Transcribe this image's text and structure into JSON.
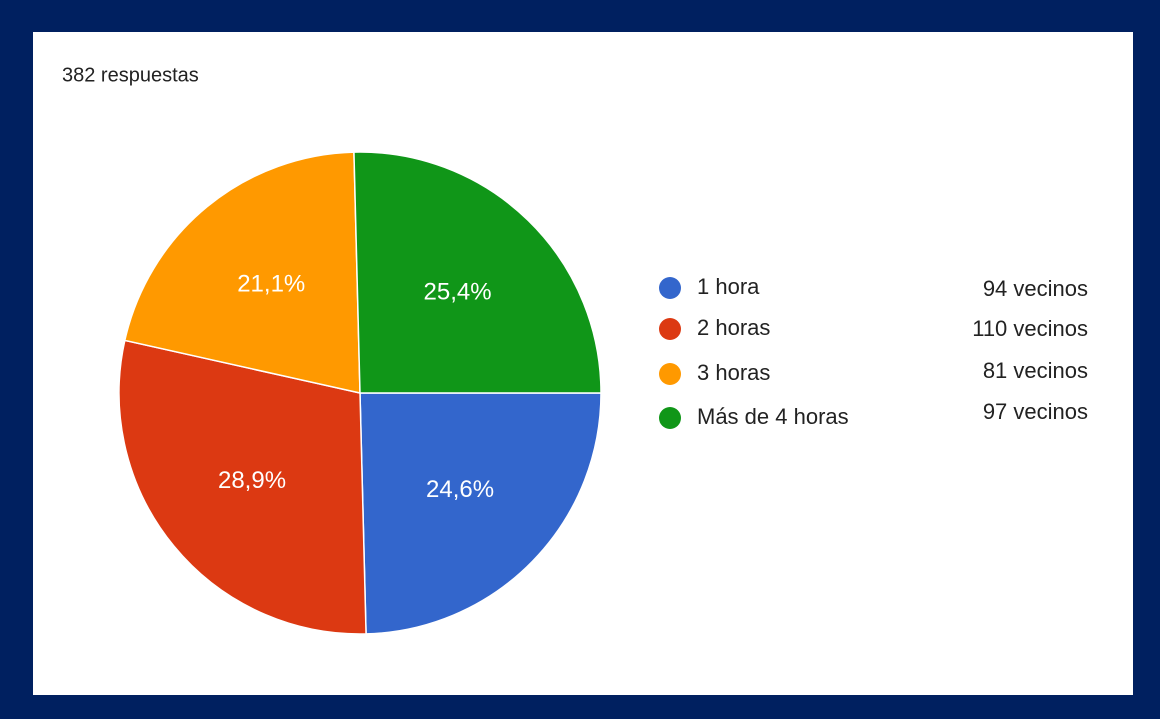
{
  "chart_data": {
    "type": "pie",
    "title": "382 respuestas",
    "categories": [
      "1 hora",
      "2 horas",
      "3 horas",
      "Más de 4 horas"
    ],
    "values": [
      24.6,
      28.9,
      21.1,
      25.4
    ],
    "value_labels": [
      "24,6%",
      "28,9%",
      "21,1%",
      "25,4%"
    ],
    "colors": [
      "#3366cc",
      "#dc3912",
      "#ff9900",
      "#109618"
    ],
    "annotations": [
      "94 vecinos",
      "110 vecinos",
      "81 vecinos",
      "97 vecinos"
    ]
  }
}
